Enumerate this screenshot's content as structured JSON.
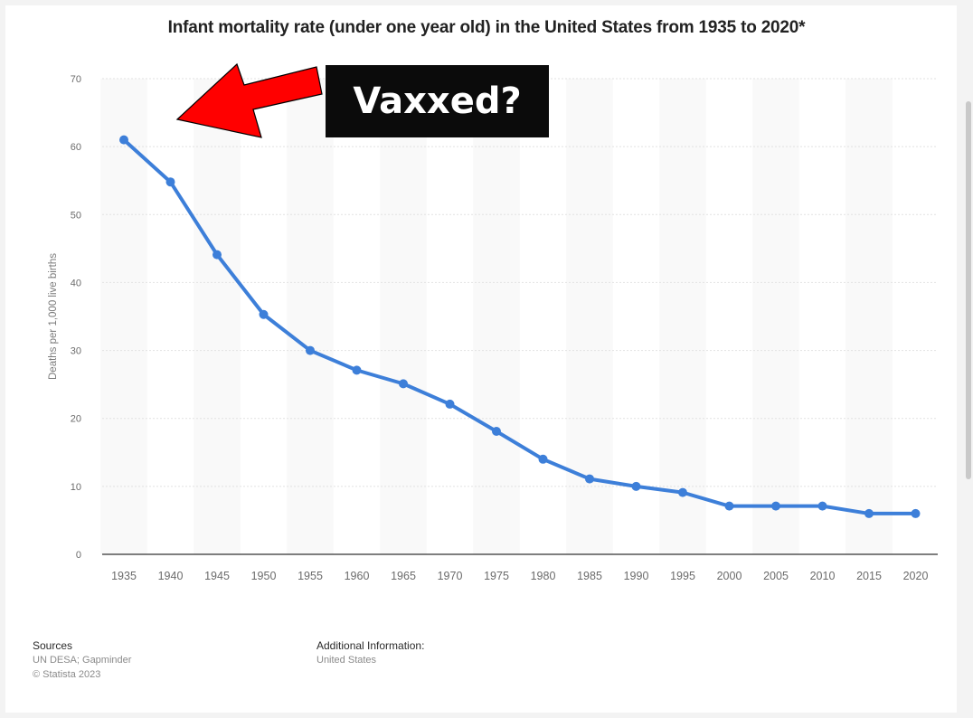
{
  "chart_data": {
    "type": "line",
    "title": "Infant mortality rate (under one year old) in the United States from 1935 to 2020*",
    "ylabel": "Deaths per 1,000 live births",
    "xlabel": "",
    "ylim": [
      0,
      70
    ],
    "yticks": [
      0,
      10,
      20,
      30,
      40,
      50,
      60,
      70
    ],
    "categories": [
      "1935",
      "1940",
      "1945",
      "1950",
      "1955",
      "1960",
      "1965",
      "1970",
      "1975",
      "1980",
      "1985",
      "1990",
      "1995",
      "2000",
      "2005",
      "2010",
      "2015",
      "2020"
    ],
    "series": [
      {
        "values": [
          61,
          54.8,
          44.1,
          35.3,
          30,
          27.1,
          25.1,
          22.1,
          18.1,
          14,
          11.1,
          10,
          9.1,
          7.1,
          7.1,
          7.1,
          6,
          6
        ]
      }
    ],
    "grid": true,
    "line_color": "#3d7fd9"
  },
  "annotation": {
    "text": "Vaxxed?",
    "arrow_color": "#ff0000"
  },
  "footer": {
    "sources_heading": "Sources",
    "sources_lines": [
      "UN DESA; Gapminder",
      "© Statista 2023"
    ],
    "additional_heading": "Additional Information:",
    "additional_lines": [
      "United States"
    ]
  }
}
